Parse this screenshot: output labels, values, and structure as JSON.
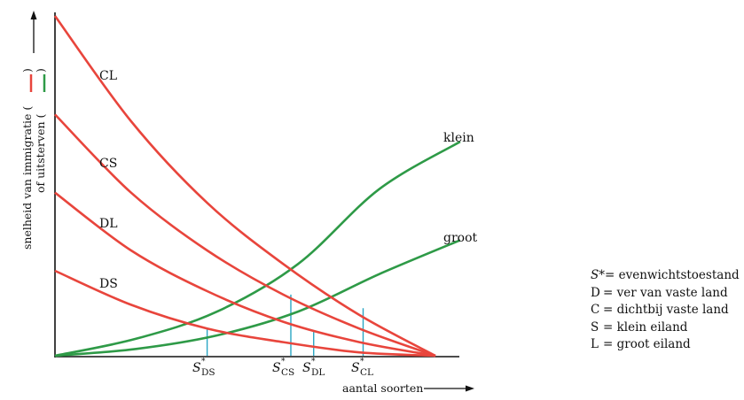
{
  "axes": {
    "y_label_line1": "snelheid van immigratie (",
    "y_label_line1_close": ")",
    "y_label_line2": "of uitsterven (",
    "y_label_line2_close": ")",
    "x_label": "aantal soorten"
  },
  "colors": {
    "immigration": "#e8453c",
    "extinction": "#2e9a47",
    "equilibrium": "#2aa6c4",
    "axis": "#111111"
  },
  "chart_data": {
    "type": "line",
    "xlabel": "aantal soorten",
    "ylabel": "snelheid van immigratie of uitsterven",
    "xlim": [
      0,
      100
    ],
    "ylim": [
      0,
      100
    ],
    "immigration_curves": [
      {
        "name": "CL",
        "x": [
          0,
          20,
          40,
          60,
          80,
          100
        ],
        "y": [
          100,
          69,
          45,
          27,
          12,
          0
        ]
      },
      {
        "name": "CS",
        "x": [
          0,
          20,
          40,
          60,
          80,
          100
        ],
        "y": [
          71,
          48,
          31,
          18,
          8,
          0
        ]
      },
      {
        "name": "DL",
        "x": [
          0,
          20,
          40,
          60,
          80,
          100
        ],
        "y": [
          48,
          31,
          19,
          10,
          4,
          0
        ]
      },
      {
        "name": "DS",
        "x": [
          0,
          20,
          40,
          60,
          80,
          100
        ],
        "y": [
          25,
          15,
          8,
          4,
          1,
          0
        ]
      }
    ],
    "extinction_curves": [
      {
        "name": "klein",
        "x": [
          0,
          20,
          40,
          60,
          80,
          100
        ],
        "y": [
          0,
          5,
          13,
          27,
          49,
          63
        ]
      },
      {
        "name": "groot",
        "x": [
          0,
          20,
          40,
          60,
          80,
          100
        ],
        "y": [
          0,
          2,
          6,
          13,
          24,
          34
        ]
      }
    ],
    "equilibria": [
      {
        "name": "DS",
        "x": 40,
        "y": 8
      },
      {
        "name": "CS",
        "x": 62,
        "y": 18
      },
      {
        "name": "DL",
        "x": 68,
        "y": 7
      },
      {
        "name": "CL",
        "x": 81,
        "y": 14
      }
    ]
  },
  "labels": {
    "CL": "CL",
    "CS": "CS",
    "DL": "DL",
    "DS": "DS",
    "klein": "klein",
    "groot": "groot",
    "S": "S",
    "star": "*",
    "sub_DS": "DS",
    "sub_CS": "CS",
    "sub_DL": "DL",
    "sub_CL": "CL"
  },
  "legend": [
    {
      "key": "S*",
      "text": "= evenwichtstoestand"
    },
    {
      "key": "D",
      "text": "= ver van vaste land"
    },
    {
      "key": "C",
      "text": "= dichtbij vaste land"
    },
    {
      "key": "S",
      "text": "= klein eiland"
    },
    {
      "key": "L",
      "text": "= groot eiland"
    }
  ]
}
